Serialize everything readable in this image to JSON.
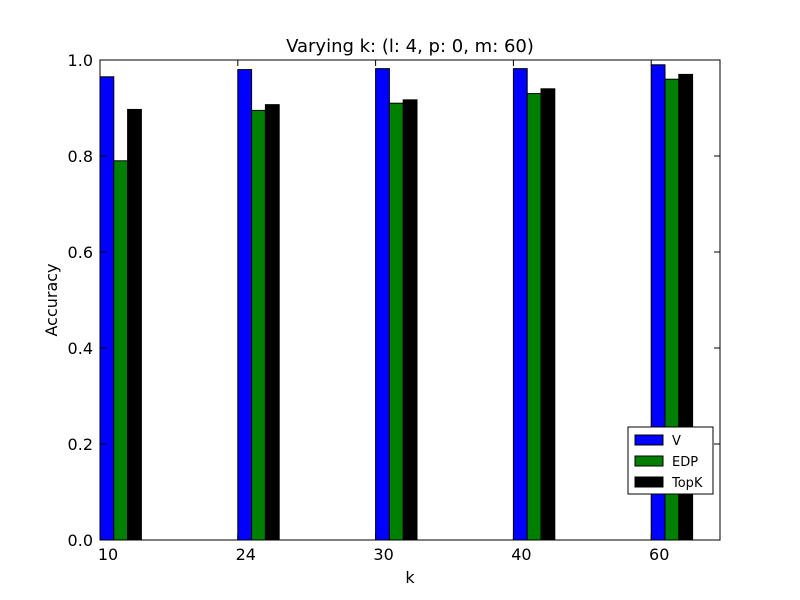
{
  "chart_data": {
    "type": "bar",
    "title": "Varying k: (l: 4, p: 0, m: 60)",
    "xlabel": "k",
    "ylabel": "Accuracy",
    "categories": [
      "10",
      "24",
      "30",
      "40",
      "60"
    ],
    "series": [
      {
        "name": "V",
        "color": "#0000ff",
        "values": [
          0.965,
          0.98,
          0.982,
          0.982,
          0.99
        ]
      },
      {
        "name": "EDP",
        "color": "#008000",
        "values": [
          0.79,
          0.895,
          0.91,
          0.93,
          0.96
        ]
      },
      {
        "name": "TopK",
        "color": "#000000",
        "values": [
          0.897,
          0.907,
          0.917,
          0.94,
          0.97
        ]
      }
    ],
    "ylim": [
      0,
      1.0
    ],
    "yticks": [
      "0.0",
      "0.2",
      "0.4",
      "0.6",
      "0.8",
      "1.0"
    ],
    "grid": false,
    "legend_position": "lower-right"
  }
}
